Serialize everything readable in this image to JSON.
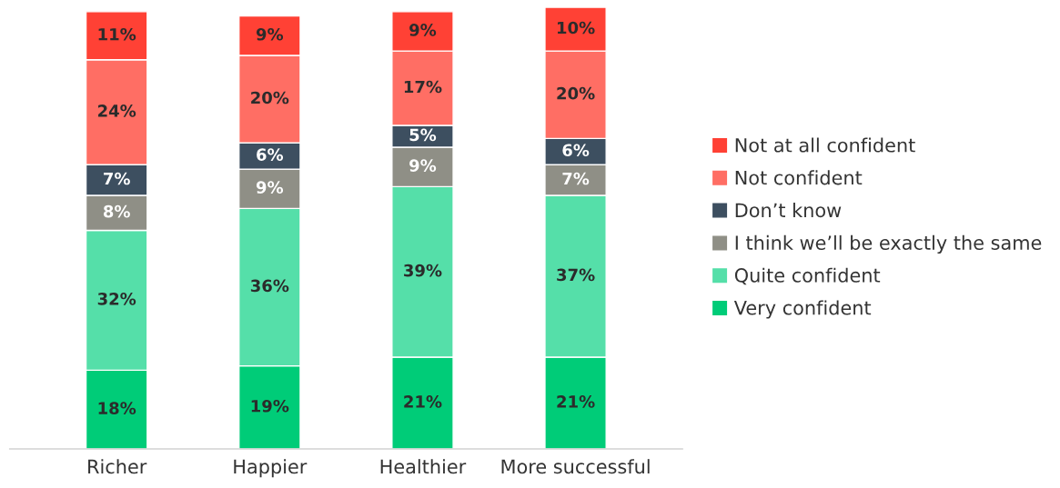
{
  "chart_data": {
    "type": "bar",
    "stacked": true,
    "legend": "right",
    "grid": false,
    "categories": [
      "Richer",
      "Happier",
      "Healthier",
      "More successful"
    ],
    "series": [
      {
        "name": "Very confident",
        "color": "#00cc78",
        "values": [
          18,
          19,
          21,
          21
        ],
        "value_labels": [
          "18%",
          "19%",
          "21%",
          "21%"
        ]
      },
      {
        "name": "Quite confident",
        "color": "#55dfa9",
        "values": [
          32,
          36,
          39,
          37
        ],
        "value_labels": [
          "32%",
          "36%",
          "39%",
          "37%"
        ]
      },
      {
        "name": "I think we’ll be exactly the same",
        "color": "#8f8f86",
        "values": [
          8,
          9,
          9,
          7
        ],
        "value_labels": [
          "8%",
          "9%",
          "9%",
          "7%"
        ]
      },
      {
        "name": "Don’t know",
        "color": "#3d4f60",
        "values": [
          7,
          6,
          5,
          6
        ],
        "value_labels": [
          "7%",
          "6%",
          "5%",
          "6%"
        ]
      },
      {
        "name": "Not confident",
        "color": "#ff6e64",
        "values": [
          24,
          20,
          17,
          20
        ],
        "value_labels": [
          "24%",
          "20%",
          "17%",
          "20%"
        ]
      },
      {
        "name": "Not at all confident",
        "color": "#ff4135",
        "values": [
          11,
          9,
          9,
          10
        ],
        "value_labels": [
          "11%",
          "9%",
          "9%",
          "10%"
        ]
      }
    ]
  }
}
